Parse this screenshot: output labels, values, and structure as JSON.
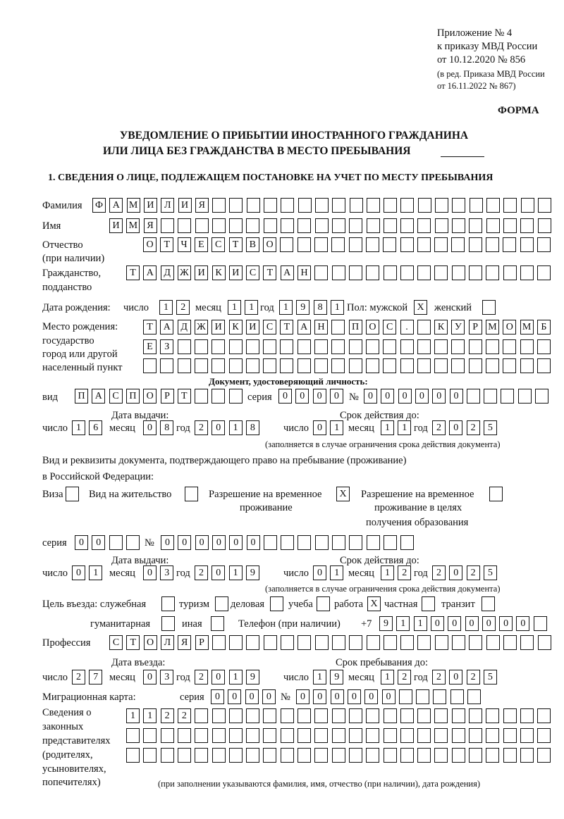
{
  "header": {
    "appendix": "Приложение № 4",
    "order": "к приказу МВД России",
    "order_date": "от 10.12.2020 № 856",
    "revision_1": "(в ред. Приказа МВД России",
    "revision_2": "от 16.11.2022 № 867)",
    "form_label": "ФОРМА",
    "title_1": "УВЕДОМЛЕНИЕ О ПРИБЫТИИ ИНОСТРАННОГО ГРАЖДАНИНА",
    "title_2": "ИЛИ ЛИЦА БЕЗ ГРАЖДАНСТВА В МЕСТО ПРЕБЫВАНИЯ",
    "section_1": "1. СВЕДЕНИЯ О ЛИЦЕ, ПОДЛЕЖАЩЕМ ПОСТАНОВКЕ НА УЧЕТ ПО МЕСТУ ПРЕБЫВАНИЯ"
  },
  "labels": {
    "surname": "Фамилия",
    "name": "Имя",
    "patronymic": "Отчество",
    "patronymic_note": "(при наличии)",
    "citizenship_1": "Гражданство,",
    "citizenship_2": "подданство",
    "birth_date": "Дата рождения:",
    "day": "число",
    "month": "месяц",
    "year": "год",
    "sex_male": "Пол: мужской",
    "sex_female": "женский",
    "birth_place_1": "Место рождения:",
    "birth_place_2": "государство",
    "birth_place_3": "город или другой",
    "birth_place_4": "населенный пункт",
    "id_doc": "Документ, удостоверяющий личность:",
    "doc_type": "вид",
    "series": "серия",
    "number": "№",
    "issue_date": "Дата выдачи:",
    "valid_until": "Срок действия до:",
    "validity_note": "(заполняется в случае ограничения срока действия документа)",
    "permit_doc_1": "Вид и реквизиты документа, подтверждающего право на пребывание (проживание)",
    "permit_doc_2": "в Российской Федерации:",
    "visa": "Виза",
    "residence_permit": "Вид на жительство",
    "temp_residence_1": "Разрешение на временное",
    "temp_residence_2": "проживание",
    "temp_edu_1": "Разрешение на временное",
    "temp_edu_2": "проживание в целях",
    "temp_edu_3": "получения образования",
    "purpose": "Цель въезда: служебная",
    "tourism": "туризм",
    "business": "деловая",
    "study": "учеба",
    "work": "работа",
    "private": "частная",
    "transit": "транзит",
    "humanitarian": "гуманитарная",
    "other": "иная",
    "phone": "Телефон (при наличии)",
    "phone_prefix": "+7",
    "profession": "Профессия",
    "entry_date": "Дата въезда:",
    "stay_until": "Срок пребывания до:",
    "migration_card": "Миграционная карта:",
    "reps_1": "Сведения о",
    "reps_2": "законных",
    "reps_3": "представителях",
    "reps_4": "(родителях,",
    "reps_5": "усыновителях,",
    "reps_6": "попечителях)",
    "reps_note": "(при заполнении указываются фамилия, имя, отчество (при наличии), дата рождения)"
  },
  "values": {
    "surname": "ФАМИЛИЯ",
    "name": "ИМЯ",
    "patronymic": "ОТЧЕСТВО",
    "citizenship": "ТАДЖИКИСТАН",
    "birth_day": "12",
    "birth_month": "11",
    "birth_year": "1981",
    "sex_male": "X",
    "sex_female": "",
    "birth_place_1": "ТАДЖИКИСТАН ПОС. КУРМОМБ",
    "birth_place_2": "ЕЗ",
    "birth_place_3": "",
    "doc_type": "ПАСПОРТ",
    "doc_series": "0000",
    "doc_number": "000000",
    "doc_issue_day": "16",
    "doc_issue_month": "08",
    "doc_issue_year": "2018",
    "doc_valid_day": "01",
    "doc_valid_month": "11",
    "doc_valid_year": "2025",
    "visa": "",
    "residence_permit": "",
    "temp_residence": "X",
    "temp_edu": "",
    "permit_series": "00",
    "permit_number": "000000",
    "permit_issue_day": "01",
    "permit_issue_month": "03",
    "permit_issue_year": "2019",
    "permit_valid_day": "01",
    "permit_valid_month": "12",
    "permit_valid_year": "2025",
    "purpose_service": "",
    "purpose_tourism": "",
    "purpose_business": "",
    "purpose_study": "",
    "purpose_work": "X",
    "purpose_private": "",
    "purpose_transit": "",
    "purpose_humanitarian": "",
    "purpose_other": "",
    "phone": "911000000",
    "profession": "СТОЛЯР",
    "entry_day": "27",
    "entry_month": "03",
    "entry_year": "2019",
    "stay_day": "19",
    "stay_month": "12",
    "stay_year": "2025",
    "mig_series": "0000",
    "mig_number": "000000",
    "reps_1": "1122",
    "reps_2": "",
    "reps_3": ""
  }
}
